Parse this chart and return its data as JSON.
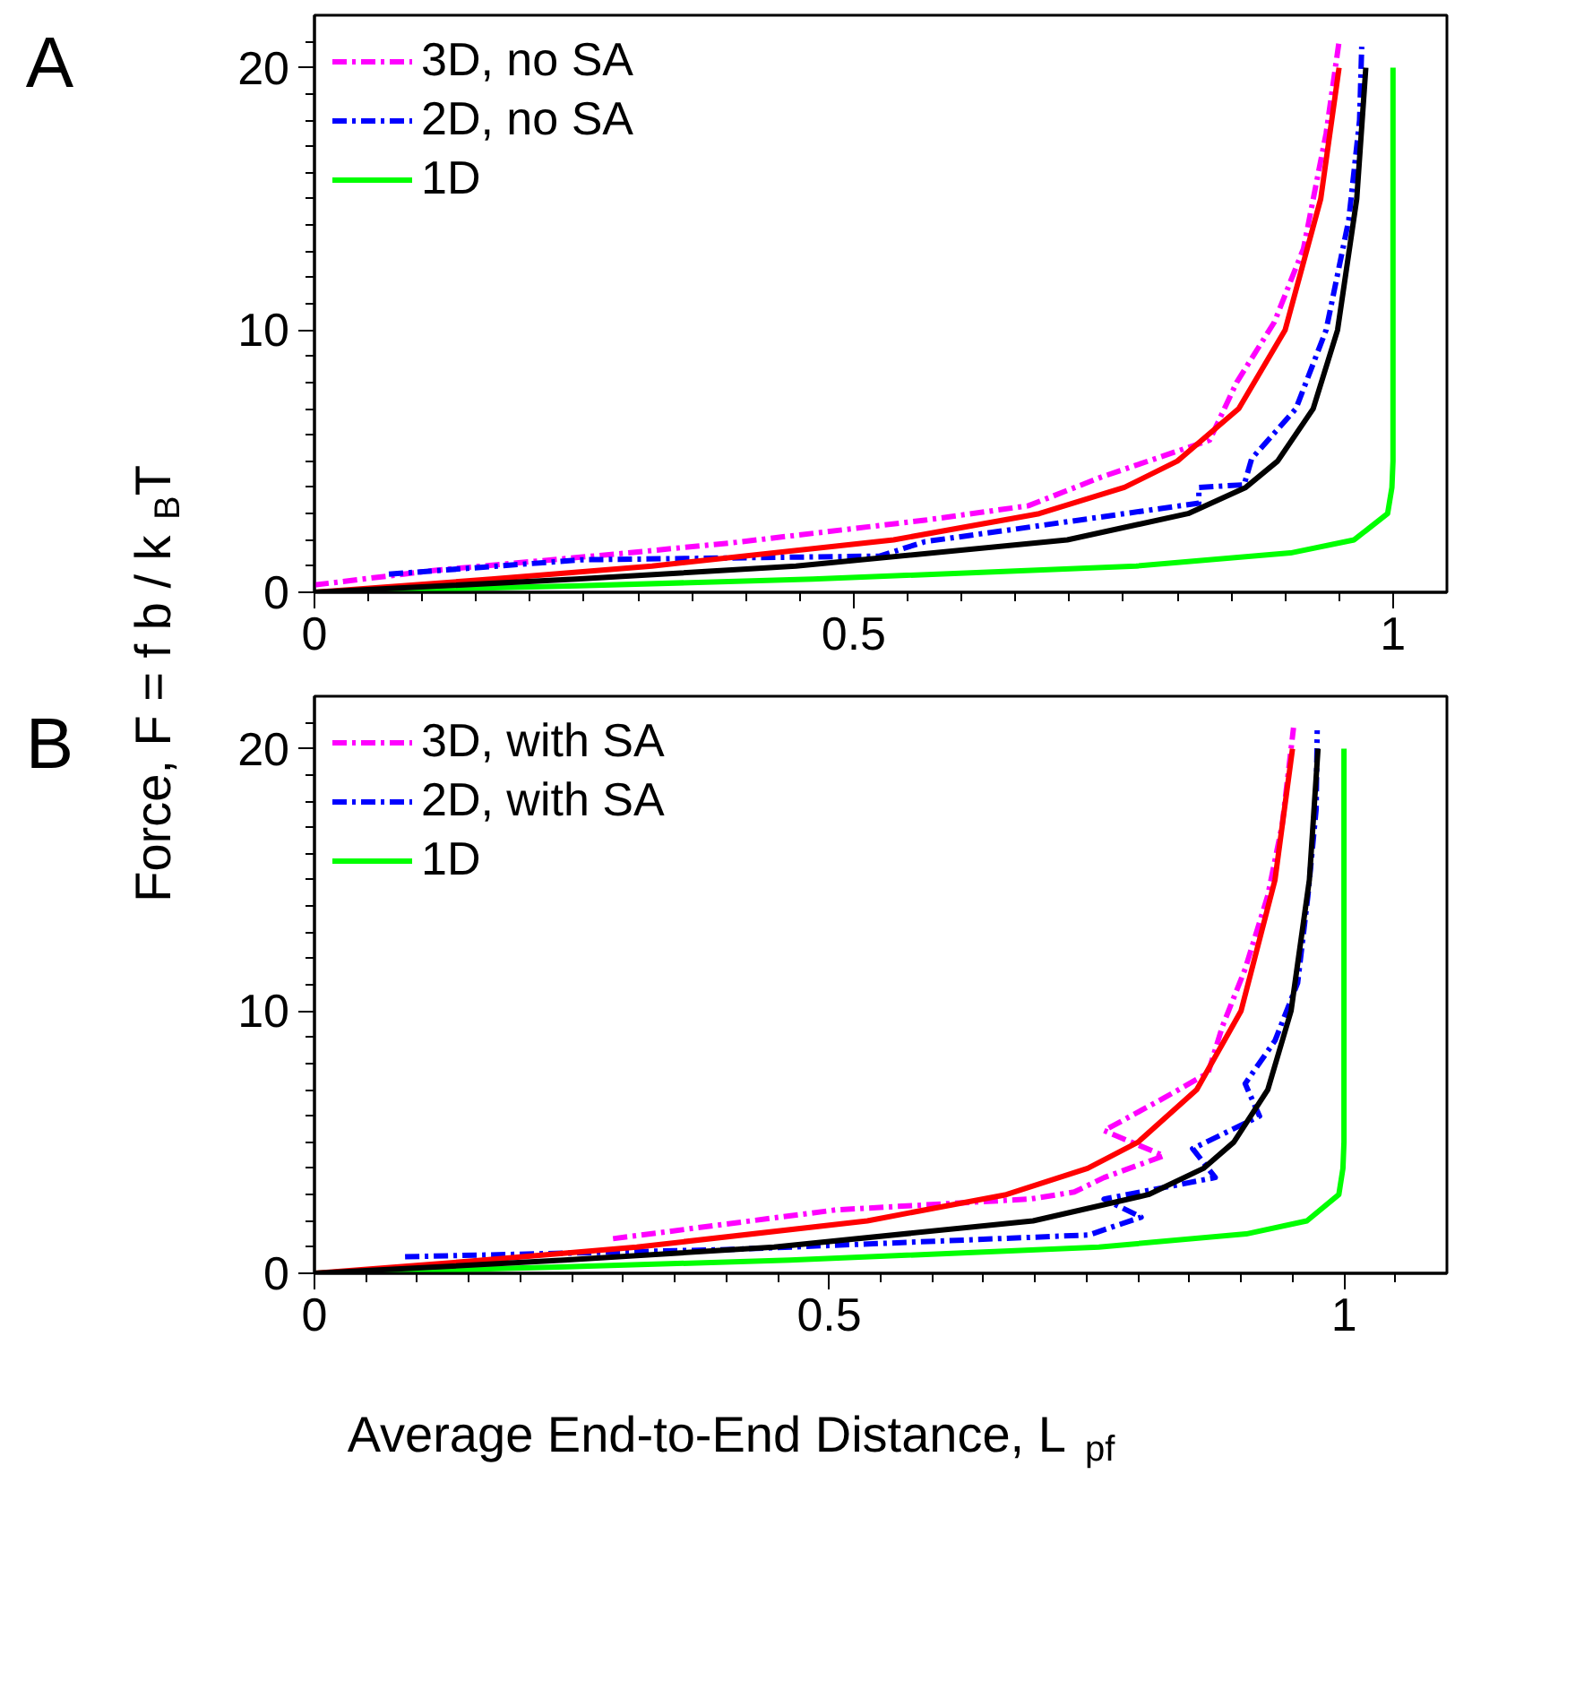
{
  "chart_data": [
    {
      "type": "line",
      "annotations": [
        "A"
      ],
      "ylabel": "Force, F = f b / k$_{B}$T",
      "legend": "top left",
      "line_style": "solid",
      "grid": false,
      "xlim": [
        0,
        1.05
      ],
      "ylim": [
        0,
        22
      ],
      "xticks": [
        0,
        {
          "value": 0.05,
          "label": null
        },
        {
          "value": 0.1,
          "label": null
        },
        {
          "value": 0.15,
          "label": null
        },
        {
          "value": 0.2,
          "label": null
        },
        {
          "value": 0.25,
          "label": null
        },
        {
          "value": 0.3,
          "label": null
        },
        {
          "value": 0.35,
          "label": null
        },
        {
          "value": 0.4,
          "label": null
        },
        {
          "value": 0.45,
          "label": null
        },
        0.5,
        {
          "value": 0.55,
          "label": null
        },
        {
          "value": 0.6,
          "label": null
        },
        {
          "value": 0.65,
          "label": null
        },
        {
          "value": 0.7,
          "label": null
        },
        {
          "value": 0.75,
          "label": null
        },
        {
          "value": 0.8,
          "label": null
        },
        {
          "value": 0.85,
          "label": null
        },
        {
          "value": 0.9,
          "label": null
        },
        {
          "value": 0.95,
          "label": null
        },
        1
      ],
      "yticks": [
        0,
        {
          "value": 1,
          "label": null
        },
        {
          "value": 2,
          "label": null
        },
        {
          "value": 3,
          "label": null
        },
        {
          "value": 4,
          "label": null
        },
        {
          "value": 5,
          "label": null
        },
        {
          "value": 6,
          "label": null
        },
        {
          "value": 7,
          "label": null
        },
        {
          "value": 8,
          "label": null
        },
        {
          "value": 9,
          "label": null
        },
        10,
        {
          "value": 11,
          "label": null
        },
        {
          "value": 12,
          "label": null
        },
        {
          "value": 13,
          "label": null
        },
        {
          "value": 14,
          "label": null
        },
        {
          "value": 15,
          "label": null
        },
        {
          "value": 16,
          "label": null
        },
        {
          "value": 17,
          "label": null
        },
        {
          "value": 18,
          "label": null
        },
        {
          "value": 19,
          "label": null
        },
        20,
        {
          "value": 21,
          "label": null
        }
      ],
      "series": [
        {
          "name": "3D, no SA",
          "color": "#ff00ff",
          "line_style": "dashdot",
          "x": [
            0,
            0.11,
            0.29,
            0.39,
            0.566,
            0.662,
            0.73,
            0.83,
            0.855,
            0.89,
            0.917,
            0.938,
            0.95
          ],
          "values": [
            0.28,
            0.83,
            1.5,
            1.9,
            2.75,
            3.3,
            4.4,
            5.8,
            8.0,
            10.3,
            13.1,
            17.5,
            21.0
          ]
        },
        {
          "name": "2D, no SA",
          "color": "#0000ff",
          "line_style": "dashdot",
          "x": [
            0.069,
            0.248,
            0.524,
            0.566,
            0.662,
            0.82,
            0.82,
            0.862,
            0.869,
            0.91,
            0.938,
            0.959,
            0.969,
            0.971
          ],
          "values": [
            0.69,
            1.24,
            1.38,
            1.93,
            2.48,
            3.4,
            4.0,
            4.1,
            5.1,
            7.0,
            10.0,
            14.2,
            18.0,
            20.8
          ]
        },
        {
          "name": "1D",
          "color": "#00ff00",
          "x": [
            0,
            0.245,
            0.462,
            0.762,
            0.905,
            0.964,
            0.995,
            0.999,
            1.0,
            1.0
          ],
          "values": [
            0,
            0.25,
            0.5,
            1,
            1.5,
            2,
            3,
            4,
            5,
            20
          ]
        },
        {
          "color": "#ff0000",
          "x": [
            0,
            0.164,
            0.313,
            0.537,
            0.672,
            0.751,
            0.8,
            0.857,
            0.9,
            0.933,
            0.95
          ],
          "values": [
            0,
            0.5,
            1,
            2,
            3,
            4,
            5,
            7,
            10,
            15,
            20
          ]
        },
        {
          "color": "#000000",
          "x": [
            0,
            0.2425,
            0.4464,
            0.698,
            0.81,
            0.8635,
            0.893,
            0.926,
            0.9486,
            0.9664,
            0.9748
          ],
          "values": [
            0,
            0.5,
            1,
            2,
            3,
            4,
            5,
            7,
            10,
            15,
            20
          ]
        }
      ]
    },
    {
      "type": "line",
      "annotations": [
        "B"
      ],
      "xlabel": "Average End-to-End Distance, L$_{pf}$",
      "legend": "top left",
      "line_style": "solid",
      "grid": false,
      "xlim": [
        0,
        1.1
      ],
      "ylim": [
        0,
        22
      ],
      "xticks": [
        0,
        {
          "value": 0.05,
          "label": null
        },
        {
          "value": 0.1,
          "label": null
        },
        {
          "value": 0.15,
          "label": null
        },
        {
          "value": 0.2,
          "label": null
        },
        {
          "value": 0.25,
          "label": null
        },
        {
          "value": 0.3,
          "label": null
        },
        {
          "value": 0.35,
          "label": null
        },
        {
          "value": 0.4,
          "label": null
        },
        {
          "value": 0.45,
          "label": null
        },
        0.5,
        {
          "value": 0.55,
          "label": null
        },
        {
          "value": 0.6,
          "label": null
        },
        {
          "value": 0.65,
          "label": null
        },
        {
          "value": 0.7,
          "label": null
        },
        {
          "value": 0.75,
          "label": null
        },
        {
          "value": 0.8,
          "label": null
        },
        {
          "value": 0.85,
          "label": null
        },
        {
          "value": 0.9,
          "label": null
        },
        {
          "value": 0.95,
          "label": null
        },
        1,
        {
          "value": 1.05,
          "label": null
        }
      ],
      "yticks": [
        0,
        {
          "value": 1,
          "label": null
        },
        {
          "value": 2,
          "label": null
        },
        {
          "value": 3,
          "label": null
        },
        {
          "value": 4,
          "label": null
        },
        {
          "value": 5,
          "label": null
        },
        {
          "value": 6,
          "label": null
        },
        {
          "value": 7,
          "label": null
        },
        {
          "value": 8,
          "label": null
        },
        {
          "value": 9,
          "label": null
        },
        10,
        {
          "value": 11,
          "label": null
        },
        {
          "value": 12,
          "label": null
        },
        {
          "value": 13,
          "label": null
        },
        {
          "value": 14,
          "label": null
        },
        {
          "value": 15,
          "label": null
        },
        {
          "value": 16,
          "label": null
        },
        {
          "value": 17,
          "label": null
        },
        {
          "value": 18,
          "label": null
        },
        {
          "value": 19,
          "label": null
        },
        20,
        {
          "value": 21,
          "label": null
        }
      ],
      "series": [
        {
          "name": "3D, with SA",
          "color": "#ff00ff",
          "line_style": "dashdot",
          "x": [
            0.29,
            0.507,
            0.695,
            0.738,
            0.767,
            0.825,
            0.767,
            0.825,
            0.868,
            0.882,
            0.904,
            0.926,
            0.94,
            0.951
          ],
          "values": [
            1.32,
            2.42,
            2.83,
            3.1,
            3.65,
            4.48,
            5.44,
            6.68,
            7.64,
            9.42,
            11.6,
            14.4,
            17.1,
            20.8
          ]
        },
        {
          "name": "2D, with SA",
          "color": "#0000ff",
          "line_style": "dashdot",
          "x": [
            0.088,
            0.406,
            0.752,
            0.803,
            0.767,
            0.875,
            0.853,
            0.918,
            0.904,
            0.933,
            0.955,
            0.965,
            0.973,
            0.974
          ],
          "values": [
            0.63,
            0.91,
            1.46,
            2.14,
            2.83,
            3.65,
            4.75,
            5.99,
            7.23,
            8.87,
            11.07,
            14.4,
            17.7,
            20.7
          ]
        },
        {
          "name": "1D",
          "color": "#00ff00",
          "x": [
            0,
            0.245,
            0.462,
            0.762,
            0.905,
            0.964,
            0.995,
            0.999,
            1.0,
            1.0
          ],
          "values": [
            0,
            0.25,
            0.5,
            1,
            1.5,
            2,
            3,
            4,
            5,
            20
          ]
        },
        {
          "color": "#ff0000",
          "x": [
            0,
            0.164,
            0.313,
            0.537,
            0.672,
            0.751,
            0.8,
            0.857,
            0.9,
            0.933,
            0.95
          ],
          "values": [
            0,
            0.5,
            1,
            2,
            3,
            4,
            5,
            7,
            10,
            15,
            20
          ]
        },
        {
          "color": "#000000",
          "x": [
            0,
            0.2425,
            0.4464,
            0.698,
            0.81,
            0.8635,
            0.893,
            0.926,
            0.9486,
            0.9664,
            0.9748
          ],
          "values": [
            0,
            0.5,
            1,
            2,
            3,
            4,
            5,
            7,
            10,
            15,
            20
          ]
        }
      ]
    }
  ]
}
